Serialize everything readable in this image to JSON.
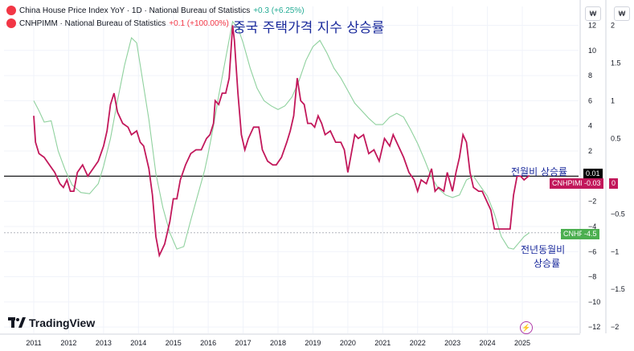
{
  "legend": [
    {
      "dot_color": "#f23645",
      "title": "China House Price Index YoY · 1D · National Bureau of Statistics",
      "change": "+0.3 (+6.25%)",
      "change_color": "green"
    },
    {
      "dot_color": "#f23645",
      "title": "CNHPIMM · National Bureau of Statistics",
      "change": "+0.1 (+100.00%)",
      "change_color": "red"
    }
  ],
  "annotations": {
    "title_ko": "중국 주택가격 지수 상승률",
    "mom_ko": "전월비 상승률",
    "yoy_ko_line1": "전년동월비",
    "yoy_ko_line2": "상승률"
  },
  "badges": {
    "mom_value": "0.01",
    "mom_name": "CNHPIMM",
    "mom_last": "-0.03",
    "right_axis_zero": "0",
    "yoy_name": "CNHPI",
    "yoy_last": "-4.5"
  },
  "currency_buttons": [
    "₩",
    "₩"
  ],
  "logo": {
    "text": "TradingView"
  },
  "bottom_icon": "lightning-icon",
  "chart_data": {
    "type": "line",
    "colors": {
      "yoy": "#8fd19e",
      "mom": "#c2185b",
      "zero_line": "#000000",
      "hline": "#b2b5be"
    },
    "x_ticks": [
      "2011",
      "2012",
      "2013",
      "2014",
      "2015",
      "2016",
      "2017",
      "2018",
      "2019",
      "2020",
      "2021",
      "2022",
      "2023",
      "2024",
      "2025"
    ],
    "left_axis": {
      "ticks": [
        12,
        10,
        8,
        6,
        4,
        2,
        0,
        -2,
        -4,
        -6,
        -8,
        -10,
        -12
      ],
      "labels": [
        "12",
        "10",
        "8",
        "6",
        "4",
        "2",
        "",
        "−2",
        "−4",
        "−6",
        "−8",
        "−10",
        "−12"
      ],
      "range": [
        -12.5,
        13.5
      ]
    },
    "right_axis": {
      "ticks": [
        2,
        1.5,
        1,
        0.5,
        0,
        -0.5,
        -1,
        -1.5,
        -2
      ],
      "labels": [
        "2",
        "1.5",
        "1",
        "0.5",
        "",
        "−0.5",
        "−1",
        "−1.5",
        "−2"
      ],
      "range": [
        -2.083,
        2.25
      ]
    },
    "series": [
      {
        "name": "China House Price Index YoY",
        "axis": "left",
        "points": [
          [
            2011.0,
            6.0
          ],
          [
            2011.15,
            5.2
          ],
          [
            2011.3,
            4.3
          ],
          [
            2011.5,
            4.4
          ],
          [
            2011.7,
            2.0
          ],
          [
            2011.9,
            0.5
          ],
          [
            2012.1,
            -0.7
          ],
          [
            2012.35,
            -1.3
          ],
          [
            2012.6,
            -1.4
          ],
          [
            2012.85,
            -0.6
          ],
          [
            2013.0,
            0.8
          ],
          [
            2013.2,
            3.0
          ],
          [
            2013.4,
            6.0
          ],
          [
            2013.6,
            8.8
          ],
          [
            2013.8,
            11.0
          ],
          [
            2013.95,
            10.6
          ],
          [
            2014.1,
            8.0
          ],
          [
            2014.3,
            4.5
          ],
          [
            2014.5,
            0.2
          ],
          [
            2014.7,
            -2.5
          ],
          [
            2014.9,
            -4.5
          ],
          [
            2015.1,
            -5.8
          ],
          [
            2015.3,
            -5.6
          ],
          [
            2015.5,
            -3.5
          ],
          [
            2015.7,
            -1.5
          ],
          [
            2015.9,
            0.5
          ],
          [
            2016.0,
            1.8
          ],
          [
            2016.15,
            4.0
          ],
          [
            2016.3,
            6.4
          ],
          [
            2016.5,
            9.4
          ],
          [
            2016.7,
            12.3
          ],
          [
            2016.85,
            11.8
          ],
          [
            2017.0,
            10.6
          ],
          [
            2017.2,
            8.6
          ],
          [
            2017.4,
            7.0
          ],
          [
            2017.6,
            6.0
          ],
          [
            2017.8,
            5.6
          ],
          [
            2018.0,
            5.3
          ],
          [
            2018.2,
            5.6
          ],
          [
            2018.4,
            6.3
          ],
          [
            2018.6,
            7.6
          ],
          [
            2018.8,
            9.2
          ],
          [
            2019.0,
            10.3
          ],
          [
            2019.2,
            10.8
          ],
          [
            2019.4,
            9.8
          ],
          [
            2019.6,
            8.6
          ],
          [
            2019.8,
            7.8
          ],
          [
            2020.0,
            6.8
          ],
          [
            2020.2,
            5.8
          ],
          [
            2020.4,
            5.2
          ],
          [
            2020.6,
            4.6
          ],
          [
            2020.8,
            4.1
          ],
          [
            2021.0,
            4.1
          ],
          [
            2021.2,
            4.7
          ],
          [
            2021.4,
            5.0
          ],
          [
            2021.6,
            4.7
          ],
          [
            2021.8,
            3.7
          ],
          [
            2022.0,
            2.6
          ],
          [
            2022.2,
            1.3
          ],
          [
            2022.4,
            -0.1
          ],
          [
            2022.6,
            -1.0
          ],
          [
            2022.8,
            -1.5
          ],
          [
            2023.0,
            -1.7
          ],
          [
            2023.2,
            -1.5
          ],
          [
            2023.4,
            -0.3
          ],
          [
            2023.6,
            0.0
          ],
          [
            2023.8,
            -0.8
          ],
          [
            2024.0,
            -1.6
          ],
          [
            2024.2,
            -3.0
          ],
          [
            2024.4,
            -4.8
          ],
          [
            2024.6,
            -5.7
          ],
          [
            2024.75,
            -5.8
          ],
          [
            2024.9,
            -5.3
          ],
          [
            2025.05,
            -4.8
          ],
          [
            2025.2,
            -4.5
          ]
        ]
      },
      {
        "name": "CNHPIMM",
        "axis": "right",
        "points": [
          [
            2011.0,
            0.8
          ],
          [
            2011.05,
            0.45
          ],
          [
            2011.15,
            0.3
          ],
          [
            2011.3,
            0.25
          ],
          [
            2011.45,
            0.15
          ],
          [
            2011.6,
            0.05
          ],
          [
            2011.75,
            -0.1
          ],
          [
            2011.85,
            -0.15
          ],
          [
            2011.95,
            -0.05
          ],
          [
            2012.05,
            -0.2
          ],
          [
            2012.15,
            -0.2
          ],
          [
            2012.25,
            0.05
          ],
          [
            2012.4,
            0.15
          ],
          [
            2012.55,
            0.0
          ],
          [
            2012.7,
            0.1
          ],
          [
            2012.85,
            0.2
          ],
          [
            2013.0,
            0.4
          ],
          [
            2013.1,
            0.6
          ],
          [
            2013.2,
            0.95
          ],
          [
            2013.3,
            1.1
          ],
          [
            2013.4,
            0.85
          ],
          [
            2013.55,
            0.7
          ],
          [
            2013.7,
            0.65
          ],
          [
            2013.8,
            0.55
          ],
          [
            2013.95,
            0.6
          ],
          [
            2014.05,
            0.45
          ],
          [
            2014.15,
            0.4
          ],
          [
            2014.3,
            0.1
          ],
          [
            2014.4,
            -0.25
          ],
          [
            2014.5,
            -0.8
          ],
          [
            2014.6,
            -1.05
          ],
          [
            2014.75,
            -0.9
          ],
          [
            2014.9,
            -0.6
          ],
          [
            2015.0,
            -0.3
          ],
          [
            2015.1,
            -0.3
          ],
          [
            2015.2,
            -0.05
          ],
          [
            2015.35,
            0.15
          ],
          [
            2015.5,
            0.3
          ],
          [
            2015.65,
            0.35
          ],
          [
            2015.8,
            0.35
          ],
          [
            2015.95,
            0.5
          ],
          [
            2016.05,
            0.55
          ],
          [
            2016.15,
            0.7
          ],
          [
            2016.2,
            1.0
          ],
          [
            2016.3,
            0.95
          ],
          [
            2016.4,
            1.1
          ],
          [
            2016.5,
            1.1
          ],
          [
            2016.6,
            1.3
          ],
          [
            2016.7,
            2.0
          ],
          [
            2016.75,
            1.8
          ],
          [
            2016.85,
            1.1
          ],
          [
            2016.95,
            0.55
          ],
          [
            2017.05,
            0.35
          ],
          [
            2017.15,
            0.5
          ],
          [
            2017.3,
            0.65
          ],
          [
            2017.45,
            0.65
          ],
          [
            2017.55,
            0.35
          ],
          [
            2017.7,
            0.2
          ],
          [
            2017.85,
            0.15
          ],
          [
            2017.95,
            0.15
          ],
          [
            2018.1,
            0.25
          ],
          [
            2018.25,
            0.45
          ],
          [
            2018.35,
            0.6
          ],
          [
            2018.45,
            0.8
          ],
          [
            2018.55,
            1.3
          ],
          [
            2018.65,
            1.0
          ],
          [
            2018.75,
            0.95
          ],
          [
            2018.85,
            0.7
          ],
          [
            2018.95,
            0.7
          ],
          [
            2019.05,
            0.65
          ],
          [
            2019.15,
            0.8
          ],
          [
            2019.25,
            0.7
          ],
          [
            2019.35,
            0.55
          ],
          [
            2019.5,
            0.6
          ],
          [
            2019.65,
            0.45
          ],
          [
            2019.8,
            0.45
          ],
          [
            2019.9,
            0.35
          ],
          [
            2020.0,
            0.05
          ],
          [
            2020.1,
            0.3
          ],
          [
            2020.2,
            0.55
          ],
          [
            2020.3,
            0.5
          ],
          [
            2020.45,
            0.55
          ],
          [
            2020.6,
            0.3
          ],
          [
            2020.75,
            0.35
          ],
          [
            2020.9,
            0.2
          ],
          [
            2021.05,
            0.5
          ],
          [
            2021.2,
            0.4
          ],
          [
            2021.3,
            0.55
          ],
          [
            2021.45,
            0.4
          ],
          [
            2021.6,
            0.25
          ],
          [
            2021.75,
            0.05
          ],
          [
            2021.9,
            -0.05
          ],
          [
            2022.0,
            -0.2
          ],
          [
            2022.1,
            -0.05
          ],
          [
            2022.25,
            -0.1
          ],
          [
            2022.4,
            0.1
          ],
          [
            2022.5,
            -0.2
          ],
          [
            2022.6,
            -0.15
          ],
          [
            2022.75,
            -0.2
          ],
          [
            2022.85,
            0.05
          ],
          [
            2023.0,
            -0.2
          ],
          [
            2023.1,
            0.05
          ],
          [
            2023.2,
            0.25
          ],
          [
            2023.3,
            0.55
          ],
          [
            2023.4,
            0.45
          ],
          [
            2023.5,
            0.05
          ],
          [
            2023.6,
            -0.15
          ],
          [
            2023.75,
            -0.2
          ],
          [
            2023.85,
            -0.2
          ],
          [
            2023.95,
            -0.3
          ],
          [
            2024.1,
            -0.45
          ],
          [
            2024.2,
            -0.7
          ],
          [
            2024.35,
            -0.7
          ],
          [
            2024.5,
            -0.7
          ],
          [
            2024.65,
            -0.7
          ],
          [
            2024.75,
            -0.25
          ],
          [
            2024.85,
            0.0
          ],
          [
            2024.95,
            0.0
          ],
          [
            2025.05,
            -0.05
          ],
          [
            2025.2,
            0.01
          ]
        ]
      }
    ]
  }
}
